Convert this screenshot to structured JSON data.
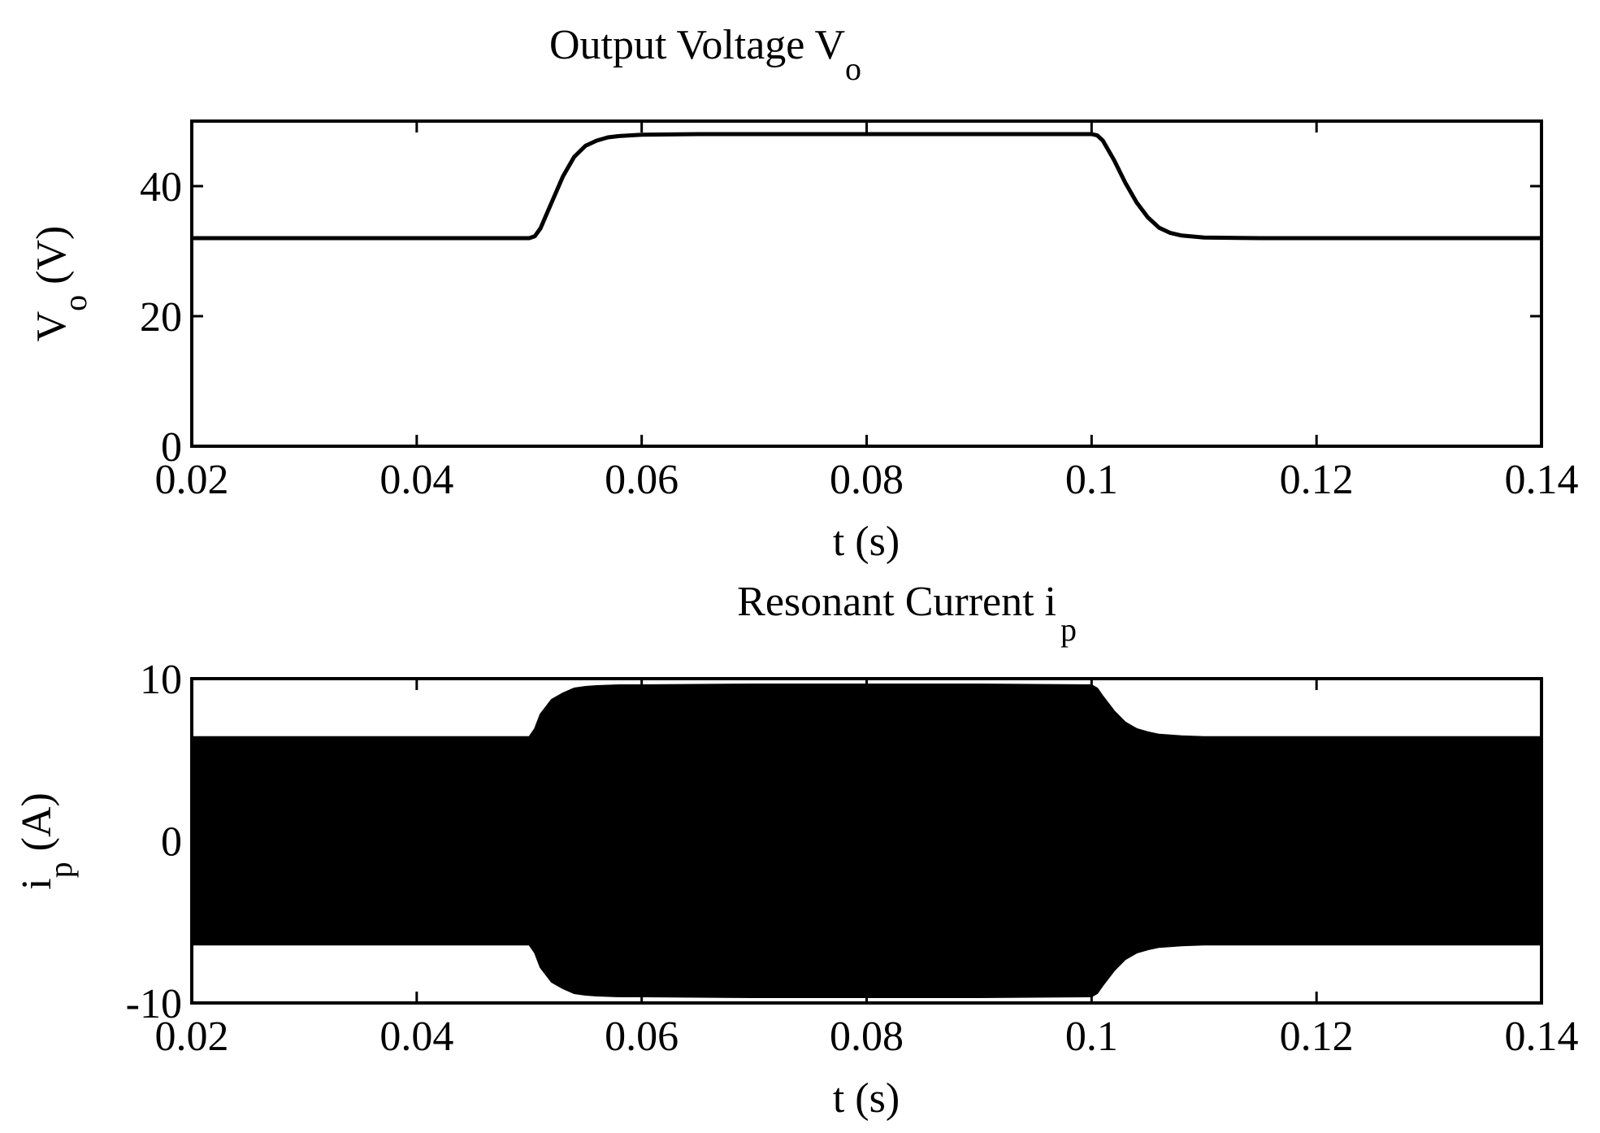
{
  "chart_data": [
    {
      "type": "line",
      "title": "Output Voltage V",
      "title_sub": "o",
      "xlabel": "t (s)",
      "ylabel": "V",
      "ylabel_sub": "o",
      "ylabel_rest": " (V)",
      "xlim": [
        0.02,
        0.14
      ],
      "ylim": [
        0,
        50
      ],
      "xticks": [
        0.02,
        0.04,
        0.06,
        0.08,
        0.1,
        0.12,
        0.14
      ],
      "xtick_labels": [
        "0.02",
        "0.04",
        "0.06",
        "0.08",
        "0.1",
        "0.12",
        "0.14"
      ],
      "yticks": [
        0,
        20,
        40
      ],
      "ytick_labels": [
        "0",
        "20",
        "40"
      ],
      "grid": false,
      "series": [
        {
          "x": [
            0.02,
            0.05,
            0.0505,
            0.051,
            0.052,
            0.053,
            0.054,
            0.055,
            0.056,
            0.057,
            0.058,
            0.06,
            0.065,
            0.07,
            0.08,
            0.09,
            0.1,
            0.1005,
            0.101,
            0.102,
            0.103,
            0.104,
            0.105,
            0.106,
            0.107,
            0.108,
            0.11,
            0.115,
            0.12,
            0.13,
            0.14
          ],
          "y": [
            32,
            32,
            32.3,
            33.5,
            37.5,
            41.5,
            44.5,
            46.2,
            47.0,
            47.5,
            47.7,
            47.9,
            48,
            48,
            48,
            48,
            48,
            47.8,
            47,
            44,
            40.5,
            37.5,
            35.2,
            33.6,
            32.8,
            32.4,
            32.1,
            32,
            32,
            32,
            32
          ]
        }
      ]
    },
    {
      "type": "area",
      "title": "Resonant Current i",
      "title_sub": "p",
      "xlabel": "t (s)",
      "ylabel": "i",
      "ylabel_sub": "p",
      "ylabel_rest": " (A)",
      "xlim": [
        0.02,
        0.14
      ],
      "ylim": [
        -10,
        10
      ],
      "xticks": [
        0.02,
        0.04,
        0.06,
        0.08,
        0.1,
        0.12,
        0.14
      ],
      "xtick_labels": [
        "0.02",
        "0.04",
        "0.06",
        "0.08",
        "0.1",
        "0.12",
        "0.14"
      ],
      "yticks": [
        -10,
        0,
        10
      ],
      "ytick_labels": [
        "-10",
        "0",
        "10"
      ],
      "grid": false,
      "series": [
        {
          "x": [
            0.02,
            0.05,
            0.0505,
            0.051,
            0.052,
            0.053,
            0.054,
            0.055,
            0.056,
            0.058,
            0.06,
            0.07,
            0.08,
            0.09,
            0.1,
            0.1005,
            0.101,
            0.102,
            0.103,
            0.104,
            0.105,
            0.106,
            0.108,
            0.11,
            0.115,
            0.12,
            0.13,
            0.14
          ],
          "upper": [
            6.4,
            6.4,
            6.9,
            7.8,
            8.7,
            9.1,
            9.4,
            9.5,
            9.55,
            9.6,
            9.6,
            9.65,
            9.65,
            9.65,
            9.6,
            9.4,
            8.9,
            8.0,
            7.3,
            6.9,
            6.7,
            6.55,
            6.45,
            6.4,
            6.4,
            6.4,
            6.4,
            6.4
          ],
          "lower": [
            -6.4,
            -6.4,
            -6.9,
            -7.8,
            -8.7,
            -9.1,
            -9.4,
            -9.5,
            -9.55,
            -9.6,
            -9.6,
            -9.65,
            -9.65,
            -9.65,
            -9.6,
            -9.4,
            -8.9,
            -8.0,
            -7.3,
            -6.9,
            -6.7,
            -6.55,
            -6.45,
            -6.4,
            -6.4,
            -6.4,
            -6.4,
            -6.4
          ]
        }
      ]
    }
  ]
}
